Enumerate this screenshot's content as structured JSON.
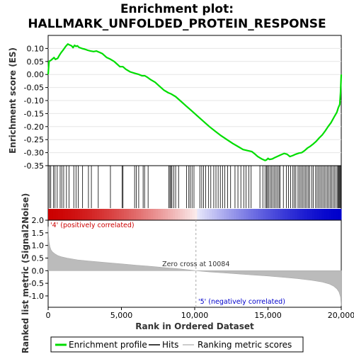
{
  "chart_data": [
    {
      "type": "line",
      "title_line1": "Enrichment plot:",
      "title_line2": "HALLMARK_UNFOLDED_PROTEIN_RESPONSE",
      "ylabel": "Enrichment score (ES)",
      "xlim": [
        0,
        20000
      ],
      "ylim": [
        -0.35,
        0.15
      ],
      "yticks": [
        "0.10",
        "0.05",
        "0.00",
        "-0.05",
        "-0.10",
        "-0.15",
        "-0.20",
        "-0.25",
        "-0.30",
        "-0.35"
      ],
      "line_color": "#00dd00",
      "series": [
        {
          "name": "Enrichment profile",
          "x": [
            0,
            60,
            200,
            400,
            500,
            650,
            750,
            900,
            1000,
            1100,
            1200,
            1350,
            1400,
            1600,
            1700,
            1800,
            1900,
            2000,
            2100,
            2300,
            2500,
            2700,
            2900,
            3100,
            3300,
            3500,
            3700,
            4000,
            4200,
            4500,
            4700,
            4900,
            5100,
            5300,
            5600,
            5900,
            6200,
            6400,
            6600,
            6800,
            7000,
            7300,
            7600,
            7900,
            8200,
            8400,
            8700,
            9000,
            9400,
            9800,
            10200,
            10600,
            11000,
            11400,
            11800,
            12200,
            12600,
            13000,
            13300,
            13600,
            13900,
            14100,
            14300,
            14600,
            14800,
            14900,
            15000,
            15100,
            15300,
            15500,
            15700,
            15900,
            16100,
            16300,
            16500,
            16700,
            16900,
            17100,
            17300,
            17500,
            17700,
            17900,
            18100,
            18300,
            18500,
            18700,
            18900,
            19100,
            19300,
            19500,
            19700,
            19800,
            19900,
            19950,
            20000
          ],
          "y": [
            0.0,
            0.05,
            0.055,
            0.065,
            0.058,
            0.062,
            0.072,
            0.085,
            0.092,
            0.1,
            0.108,
            0.117,
            0.115,
            0.11,
            0.103,
            0.112,
            0.108,
            0.11,
            0.104,
            0.1,
            0.097,
            0.093,
            0.09,
            0.088,
            0.09,
            0.085,
            0.08,
            0.065,
            0.06,
            0.05,
            0.04,
            0.03,
            0.03,
            0.02,
            0.01,
            0.005,
            0.0,
            -0.005,
            -0.005,
            -0.012,
            -0.02,
            -0.03,
            -0.045,
            -0.06,
            -0.07,
            -0.075,
            -0.085,
            -0.1,
            -0.12,
            -0.14,
            -0.16,
            -0.18,
            -0.2,
            -0.218,
            -0.235,
            -0.25,
            -0.265,
            -0.278,
            -0.288,
            -0.292,
            -0.296,
            -0.305,
            -0.315,
            -0.325,
            -0.33,
            -0.328,
            -0.322,
            -0.326,
            -0.324,
            -0.318,
            -0.313,
            -0.308,
            -0.303,
            -0.306,
            -0.315,
            -0.311,
            -0.306,
            -0.302,
            -0.3,
            -0.292,
            -0.282,
            -0.275,
            -0.266,
            -0.256,
            -0.243,
            -0.232,
            -0.217,
            -0.2,
            -0.185,
            -0.165,
            -0.145,
            -0.127,
            -0.115,
            -0.07,
            0.0
          ]
        }
      ]
    },
    {
      "type": "bar",
      "description_role": "hits",
      "series": [
        {
          "name": "Hits",
          "x": [
            90,
            180,
            370,
            470,
            620,
            820,
            930,
            1060,
            1250,
            1420,
            1750,
            1900,
            2050,
            2350,
            2750,
            2950,
            3420,
            4250,
            5050,
            5110,
            5900,
            6020,
            6180,
            6480,
            6580,
            6820,
            8240,
            8310,
            8380,
            8450,
            8580,
            8700,
            8900,
            9450,
            9600,
            9700,
            9820,
            9950,
            10350,
            10480,
            10600,
            10750,
            10950,
            11100,
            11300,
            11450,
            11600,
            11750,
            11900,
            12050,
            12250,
            12450,
            12750,
            12950,
            13150,
            13350,
            13500,
            13700,
            13850,
            14450,
            14650,
            14800,
            14900,
            14960,
            15050,
            15150,
            15250,
            15350,
            15450,
            15550,
            15650,
            15750,
            15820,
            16050,
            16250,
            16400,
            16550,
            16700,
            16800,
            16900,
            17050,
            17150,
            17250,
            17350,
            17450,
            17550,
            17650,
            17750,
            17850,
            18000,
            18100,
            18250,
            18350,
            18450,
            18550,
            18650,
            18750,
            18850,
            18950,
            19050,
            19150,
            19250,
            19350,
            19450,
            19550,
            19650,
            19750,
            19800,
            19850,
            19900,
            19950
          ]
        }
      ]
    },
    {
      "type": "area",
      "ylabel": "Ranked list metric (Signal2Noise)",
      "xlabel": "Rank in Ordered Dataset",
      "xlim": [
        0,
        20000
      ],
      "ylim": [
        -1.45,
        2.0
      ],
      "yticks": [
        "2.0",
        "1.5",
        "1.0",
        "0.5",
        "0.0",
        "-0.5",
        "-1.0"
      ],
      "xticks": [
        "0",
        "5,000",
        "10,000",
        "15,000",
        "20,000"
      ],
      "zero_cross_label": "Zero cross at 10084",
      "zero_cross": 10084,
      "pos_label": "'4' (positively correlated)",
      "neg_label": "'5' (negatively correlated)",
      "pos_color": "#cc0000",
      "neg_color": "#0000cc",
      "series": [
        {
          "name": "Ranking metric scores",
          "x": [
            0,
            20,
            60,
            120,
            200,
            300,
            450,
            650,
            900,
            1300,
            2000,
            3000,
            4000,
            5000,
            6000,
            7000,
            8000,
            9000,
            10084,
            11000,
            12000,
            13000,
            14000,
            15000,
            16000,
            17000,
            18000,
            18700,
            19200,
            19500,
            19700,
            19850,
            19950,
            20000
          ],
          "y": [
            1.75,
            1.5,
            1.15,
            0.95,
            0.82,
            0.74,
            0.67,
            0.6,
            0.55,
            0.5,
            0.43,
            0.37,
            0.32,
            0.27,
            0.22,
            0.17,
            0.12,
            0.07,
            0.0,
            -0.05,
            -0.09,
            -0.13,
            -0.17,
            -0.21,
            -0.26,
            -0.31,
            -0.38,
            -0.45,
            -0.53,
            -0.62,
            -0.72,
            -0.85,
            -1.05,
            -1.4
          ]
        }
      ]
    }
  ],
  "legend": {
    "items": [
      {
        "label": "Enrichment profile",
        "color": "#00dd00"
      },
      {
        "label": "Hits",
        "color": "#000000"
      },
      {
        "label": "Ranking metric scores",
        "color": "#bbbbbb"
      }
    ]
  }
}
